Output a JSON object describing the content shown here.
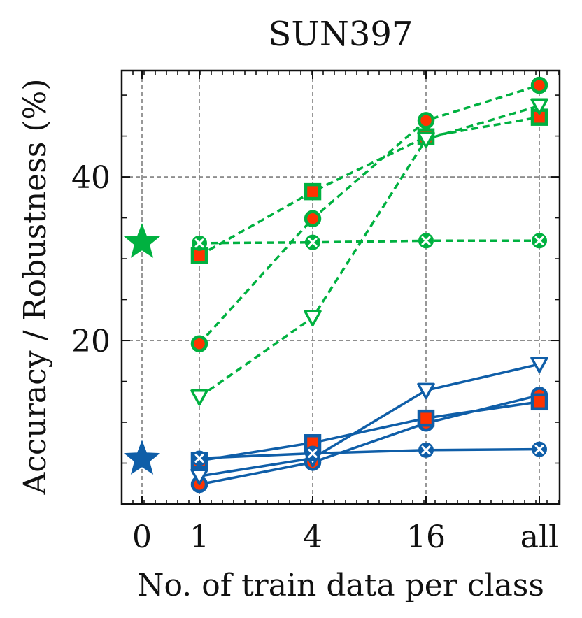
{
  "chart_data": {
    "type": "line",
    "title": "SUN397",
    "xlabel": "No. of train data per class",
    "ylabel": "Accuracy / Robustness (%)",
    "x_categories": [
      "0",
      "1",
      "4",
      "16",
      "all"
    ],
    "yticks": [
      20,
      40
    ],
    "ylim": [
      0,
      53
    ],
    "grid": true,
    "colors": {
      "green": "#00b140",
      "blue": "#0f5ea8",
      "red": "#ff3300"
    },
    "zero_shot": [
      {
        "name": "zero-shot (green)",
        "x": "0",
        "value": 32,
        "color": "#00b140",
        "marker": "star"
      },
      {
        "name": "zero-shot (blue)",
        "x": "0",
        "value": 5.5,
        "color": "#0f5ea8",
        "marker": "star"
      }
    ],
    "series": [
      {
        "name": "green-circle",
        "color": "#00b140",
        "dashed": true,
        "marker": "circle",
        "x": [
          "1",
          "4",
          "16",
          "all"
        ],
        "values": [
          19.6,
          34.9,
          46.9,
          51.2
        ]
      },
      {
        "name": "green-square",
        "color": "#00b140",
        "dashed": true,
        "marker": "square",
        "x": [
          "1",
          "4",
          "16",
          "all"
        ],
        "values": [
          30.4,
          38.2,
          44.9,
          47.3
        ]
      },
      {
        "name": "green-triangle",
        "color": "#00b140",
        "dashed": true,
        "marker": "triangle",
        "x": [
          "1",
          "4",
          "16",
          "all"
        ],
        "values": [
          13.1,
          22.8,
          44.6,
          48.7
        ]
      },
      {
        "name": "green-x",
        "color": "#00b140",
        "dashed": true,
        "marker": "x",
        "x": [
          "1",
          "4",
          "16",
          "all"
        ],
        "values": [
          31.9,
          32.0,
          32.2,
          32.2
        ]
      },
      {
        "name": "blue-circle",
        "color": "#0f5ea8",
        "dashed": false,
        "marker": "circle",
        "x": [
          "1",
          "4",
          "16",
          "all"
        ],
        "values": [
          2.4,
          5.1,
          9.9,
          13.3
        ]
      },
      {
        "name": "blue-square",
        "color": "#0f5ea8",
        "dashed": false,
        "marker": "square",
        "x": [
          "1",
          "4",
          "16",
          "all"
        ],
        "values": [
          5.3,
          7.5,
          10.5,
          12.5
        ]
      },
      {
        "name": "blue-triangle",
        "color": "#0f5ea8",
        "dashed": false,
        "marker": "triangle",
        "x": [
          "1",
          "4",
          "16",
          "all"
        ],
        "values": [
          3.4,
          5.6,
          13.9,
          17.1
        ]
      },
      {
        "name": "blue-x",
        "color": "#0f5ea8",
        "dashed": false,
        "marker": "x",
        "x": [
          "1",
          "4",
          "16",
          "all"
        ],
        "values": [
          5.6,
          6.2,
          6.6,
          6.7
        ]
      }
    ]
  }
}
